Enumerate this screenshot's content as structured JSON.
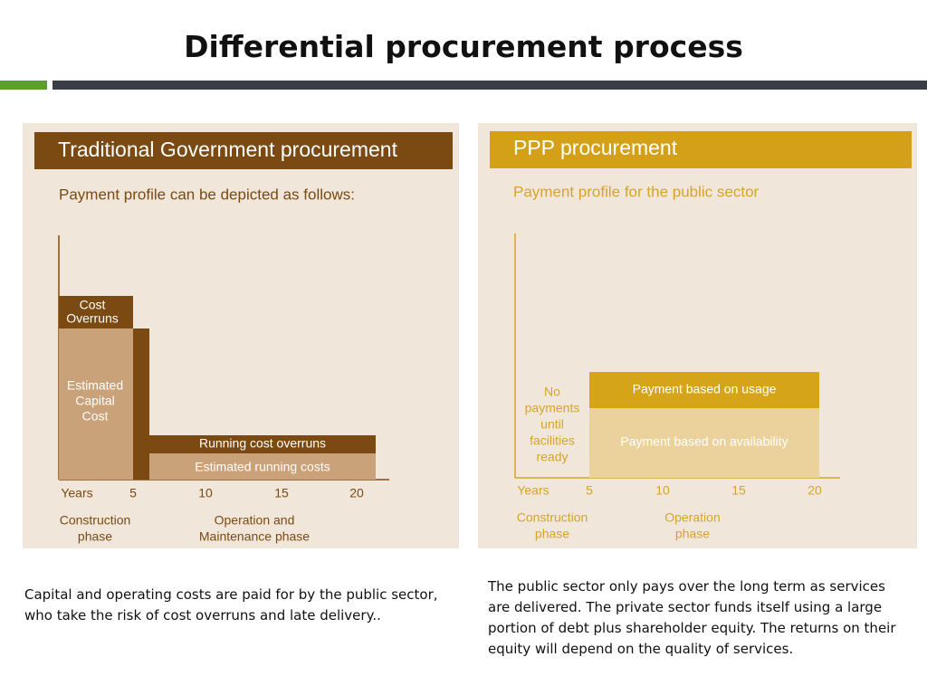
{
  "header": {
    "title": "Differential procurement process"
  },
  "left_panel": {
    "heading": "Traditional Government procurement",
    "subtitle": "Payment profile can be depicted as follows:",
    "blocks": {
      "cost_overruns": [
        "Cost",
        "Overruns"
      ],
      "capital_cost": [
        "Estimated",
        "Capital",
        "Cost"
      ],
      "running_overruns": "Running cost overruns",
      "running_costs": "Estimated running costs"
    },
    "axis": {
      "label": "Years",
      "ticks": [
        "5",
        "10",
        "15",
        "20"
      ]
    },
    "phases": [
      [
        "Construction",
        "phase"
      ],
      [
        "Operation and",
        "Maintenance phase"
      ]
    ]
  },
  "right_panel": {
    "heading": "PPP procurement",
    "subtitle": "Payment profile for the public sector",
    "blocks": {
      "no_payments": [
        "No",
        "payments",
        "until",
        "facilities",
        "ready"
      ],
      "usage": "Payment based on usage",
      "availability": "Payment based on availability"
    },
    "axis": {
      "label": "Years",
      "ticks": [
        "5",
        "10",
        "15",
        "20"
      ]
    },
    "phases": [
      [
        "Construction",
        "phase"
      ],
      [
        "Operation",
        "phase"
      ]
    ]
  },
  "captions": {
    "left": "Capital and operating costs are paid for by the public sector, who take the risk of cost overruns and late delivery..",
    "right": "The public sector only pays over the long term as services are delivered. The private sector funds itself using a large portion of debt plus shareholder equity. The returns on their equity will depend on the quality of services."
  }
}
